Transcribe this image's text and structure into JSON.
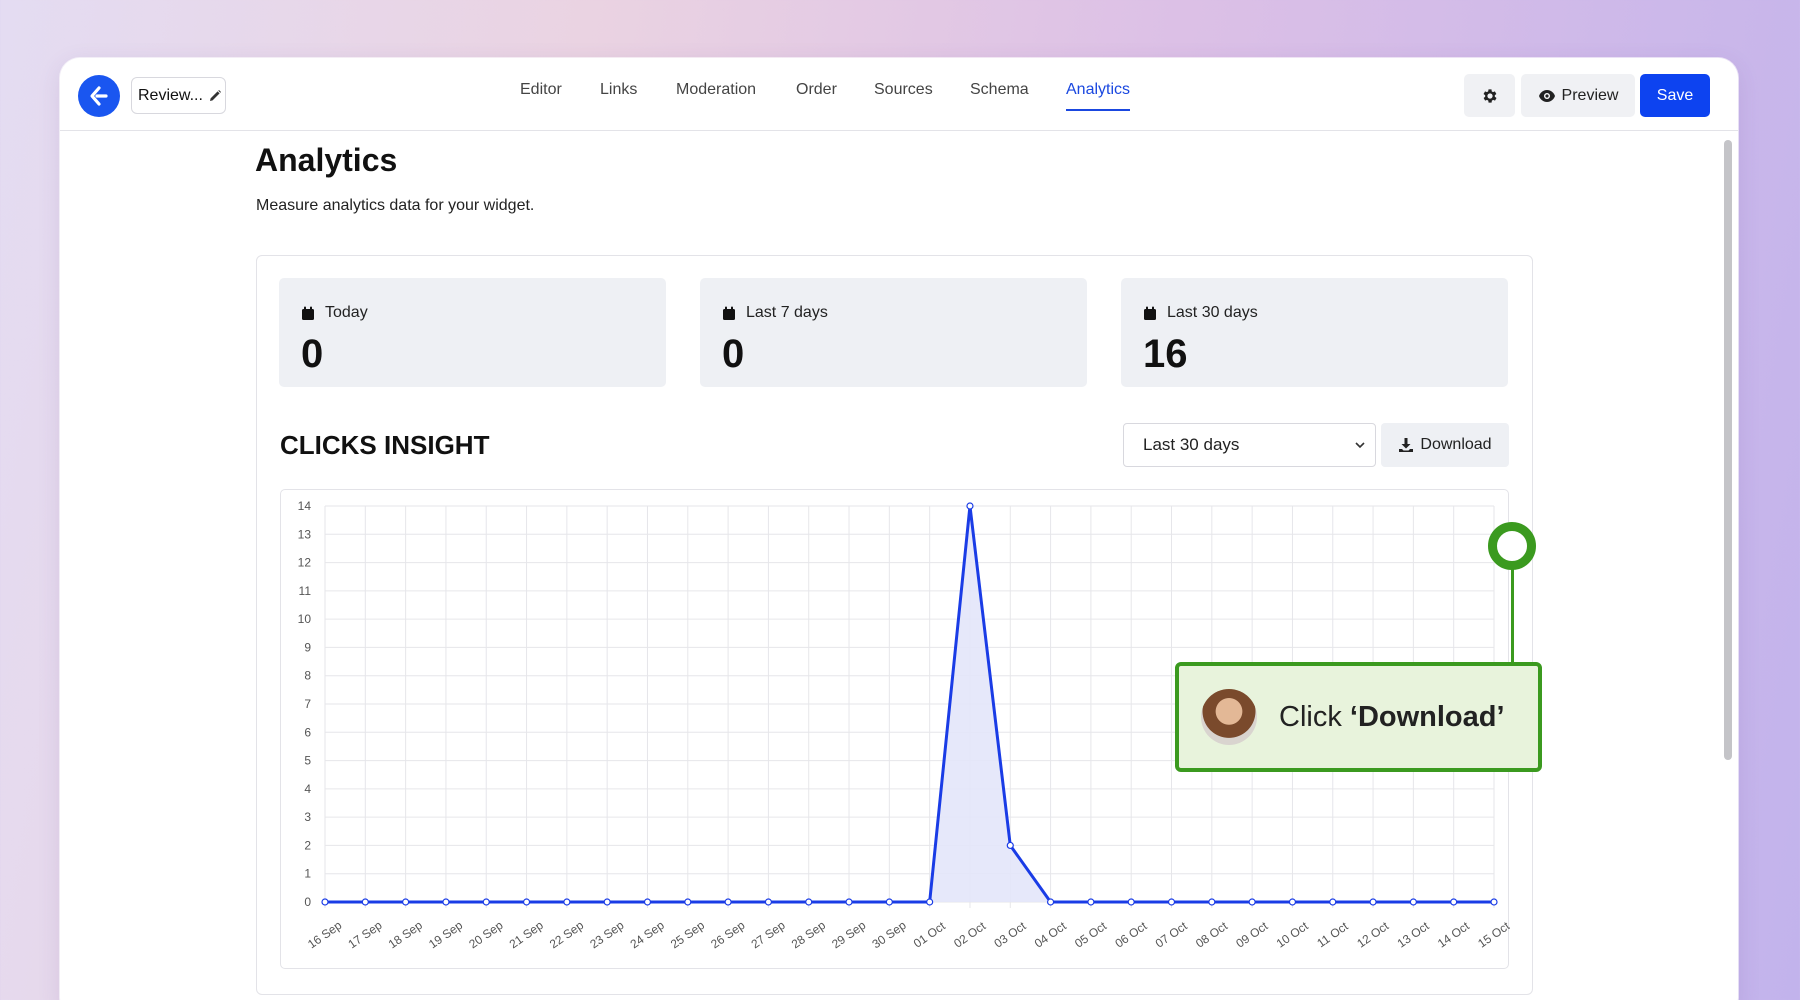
{
  "header": {
    "widget_name": "Review...",
    "nav": [
      "Editor",
      "Links",
      "Moderation",
      "Order",
      "Sources",
      "Schema",
      "Analytics"
    ],
    "active_nav": "Analytics",
    "preview_label": "Preview",
    "save_label": "Save"
  },
  "page": {
    "title": "Analytics",
    "subtitle": "Measure analytics data for your widget."
  },
  "stats": [
    {
      "label": "Today",
      "value": "0"
    },
    {
      "label": "Last 7 days",
      "value": "0"
    },
    {
      "label": "Last 30 days",
      "value": "16"
    }
  ],
  "insight": {
    "title": "CLICKS INSIGHT",
    "range_selected": "Last 30 days",
    "download_label": "Download"
  },
  "callout": {
    "prefix": "Click ",
    "emphasis": "‘Download’"
  },
  "colors": {
    "accent": "#0d43f0",
    "line": "#1a3ce6",
    "fill": "#e3e6fa",
    "highlight": "#3b9a1f"
  },
  "chart_data": {
    "type": "line",
    "x": [
      "16 Sep",
      "17 Sep",
      "18 Sep",
      "19 Sep",
      "20 Sep",
      "21 Sep",
      "22 Sep",
      "23 Sep",
      "24 Sep",
      "25 Sep",
      "26 Sep",
      "27 Sep",
      "28 Sep",
      "29 Sep",
      "30 Sep",
      "01 Oct",
      "02 Oct",
      "03 Oct",
      "04 Oct",
      "05 Oct",
      "06 Oct",
      "07 Oct",
      "08 Oct",
      "09 Oct",
      "10 Oct",
      "11 Oct",
      "12 Oct",
      "13 Oct",
      "14 Oct",
      "15 Oct"
    ],
    "series": [
      {
        "values": [
          0,
          0,
          0,
          0,
          0,
          0,
          0,
          0,
          0,
          0,
          0,
          0,
          0,
          0,
          0,
          0,
          14,
          2,
          0,
          0,
          0,
          0,
          0,
          0,
          0,
          0,
          0,
          0,
          0,
          0
        ]
      }
    ],
    "ylim": [
      0,
      14
    ],
    "yticks": [
      0,
      1,
      2,
      3,
      4,
      5,
      6,
      7,
      8,
      9,
      10,
      11,
      12,
      13,
      14
    ],
    "grid": true,
    "fill": true
  }
}
